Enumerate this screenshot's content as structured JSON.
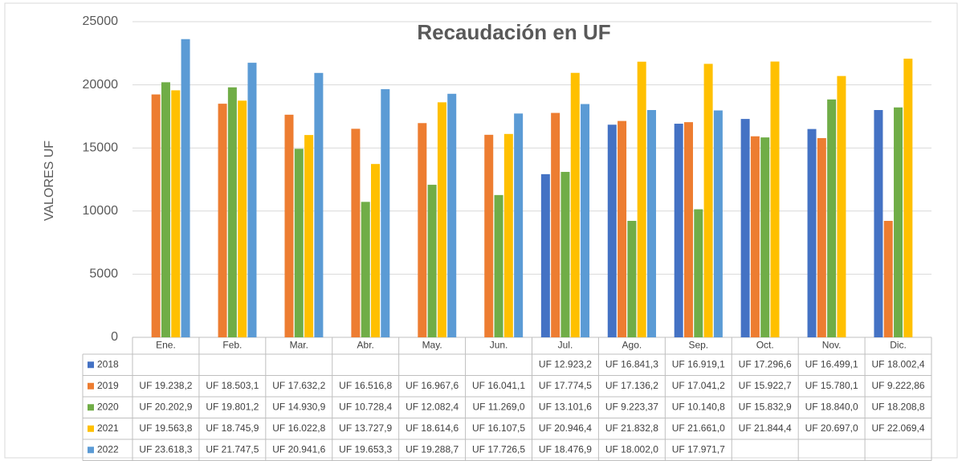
{
  "chart_data": {
    "type": "bar",
    "title": "Recaudación en UF",
    "y_label": "VALORES UF",
    "categories": [
      "Ene.",
      "Feb.",
      "Mar.",
      "Abr.",
      "May.",
      "Jun.",
      "Jul.",
      "Ago.",
      "Sep.",
      "Oct.",
      "Nov.",
      "Dic."
    ],
    "ylim": [
      0,
      25000
    ],
    "yticks": [
      0,
      5000,
      10000,
      15000,
      20000,
      25000
    ],
    "grid": true,
    "series": [
      {
        "name": "2018",
        "color": "#4472c4",
        "values": [
          null,
          null,
          null,
          null,
          null,
          null,
          12923.2,
          16841.3,
          16919.1,
          17296.6,
          16499.1,
          18002.4
        ],
        "value_labels": [
          null,
          null,
          null,
          null,
          null,
          null,
          "UF 12.923,2",
          "UF 16.841,3",
          "UF 16.919,1",
          "UF 17.296,6",
          "UF 16.499,1",
          "UF 18.002,4"
        ]
      },
      {
        "name": "2019",
        "color": "#ed7d31",
        "values": [
          19238.2,
          18503.1,
          17632.2,
          16516.8,
          16967.6,
          16041.1,
          17774.5,
          17136.2,
          17041.2,
          15922.7,
          15780.1,
          9222.86
        ],
        "value_labels": [
          "UF 19.238,2",
          "UF 18.503,1",
          "UF 17.632,2",
          "UF 16.516,8",
          "UF 16.967,6",
          "UF 16.041,1",
          "UF 17.774,5",
          "UF 17.136,2",
          "UF 17.041,2",
          "UF 15.922,7",
          "UF 15.780,1",
          "UF 9.222,86"
        ]
      },
      {
        "name": "2020",
        "color": "#70ad47",
        "values": [
          20202.9,
          19801.2,
          14930.9,
          10728.4,
          12082.4,
          11269.0,
          13101.6,
          9223.37,
          10140.8,
          15832.9,
          18840.0,
          18208.8
        ],
        "value_labels": [
          "UF 20.202,9",
          "UF 19.801,2",
          "UF 14.930,9",
          "UF 10.728,4",
          "UF 12.082,4",
          "UF 11.269,0",
          "UF 13.101,6",
          "UF 9.223,37",
          "UF 10.140,8",
          "UF 15.832,9",
          "UF 18.840,0",
          "UF 18.208,8"
        ]
      },
      {
        "name": "2021",
        "color": "#ffc000",
        "values": [
          19563.8,
          18745.9,
          16022.8,
          13727.9,
          18614.6,
          16107.5,
          20946.4,
          21832.8,
          21661.0,
          21844.4,
          20697.0,
          22069.4
        ],
        "value_labels": [
          "UF 19.563,8",
          "UF 18.745,9",
          "UF 16.022,8",
          "UF 13.727,9",
          "UF 18.614,6",
          "UF 16.107,5",
          "UF 20.946,4",
          "UF 21.832,8",
          "UF 21.661,0",
          "UF 21.844,4",
          "UF 20.697,0",
          "UF 22.069,4"
        ]
      },
      {
        "name": "2022",
        "color": "#5b9bd5",
        "values": [
          23618.3,
          21747.5,
          20941.6,
          19653.3,
          19288.7,
          17726.5,
          18476.9,
          18002.0,
          17971.7,
          null,
          null,
          null
        ],
        "value_labels": [
          "UF 23.618,3",
          "UF 21.747,5",
          "UF 20.941,6",
          "UF 19.653,3",
          "UF 19.288,7",
          "UF 17.726,5",
          "UF 18.476,9",
          "UF 18.002,0",
          "UF 17.971,7",
          null,
          null,
          null
        ]
      }
    ]
  }
}
